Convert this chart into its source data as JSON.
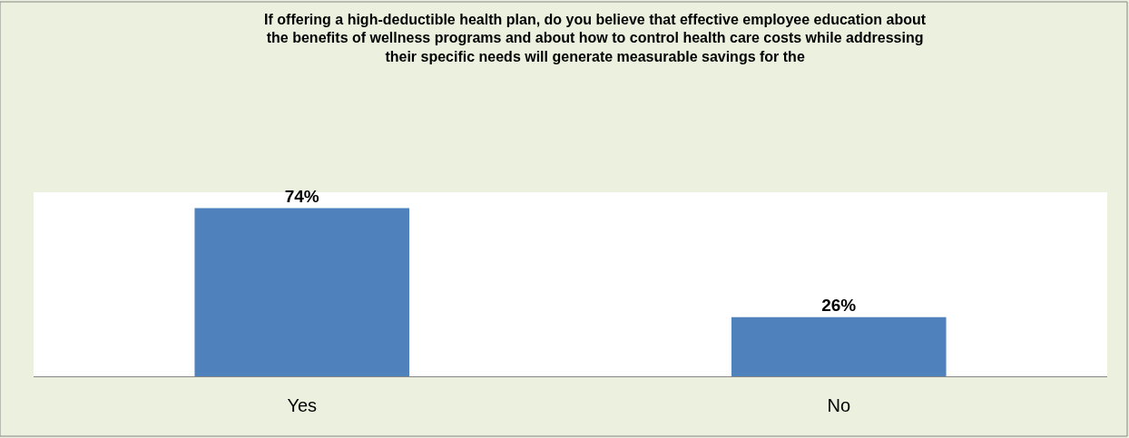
{
  "chart_data": {
    "type": "bar",
    "title": "If offering a high-deductible health plan, do you believe that effective employee education about\nthe benefits of wellness programs and about how to control health care costs while addressing\ntheir specific needs will generate measurable savings for the",
    "categories": [
      "Yes",
      "No"
    ],
    "values": [
      74,
      26
    ],
    "color": "#4f81bd",
    "value_labels": [
      "74%",
      "26%"
    ],
    "ylim": [
      0,
      81
    ]
  }
}
